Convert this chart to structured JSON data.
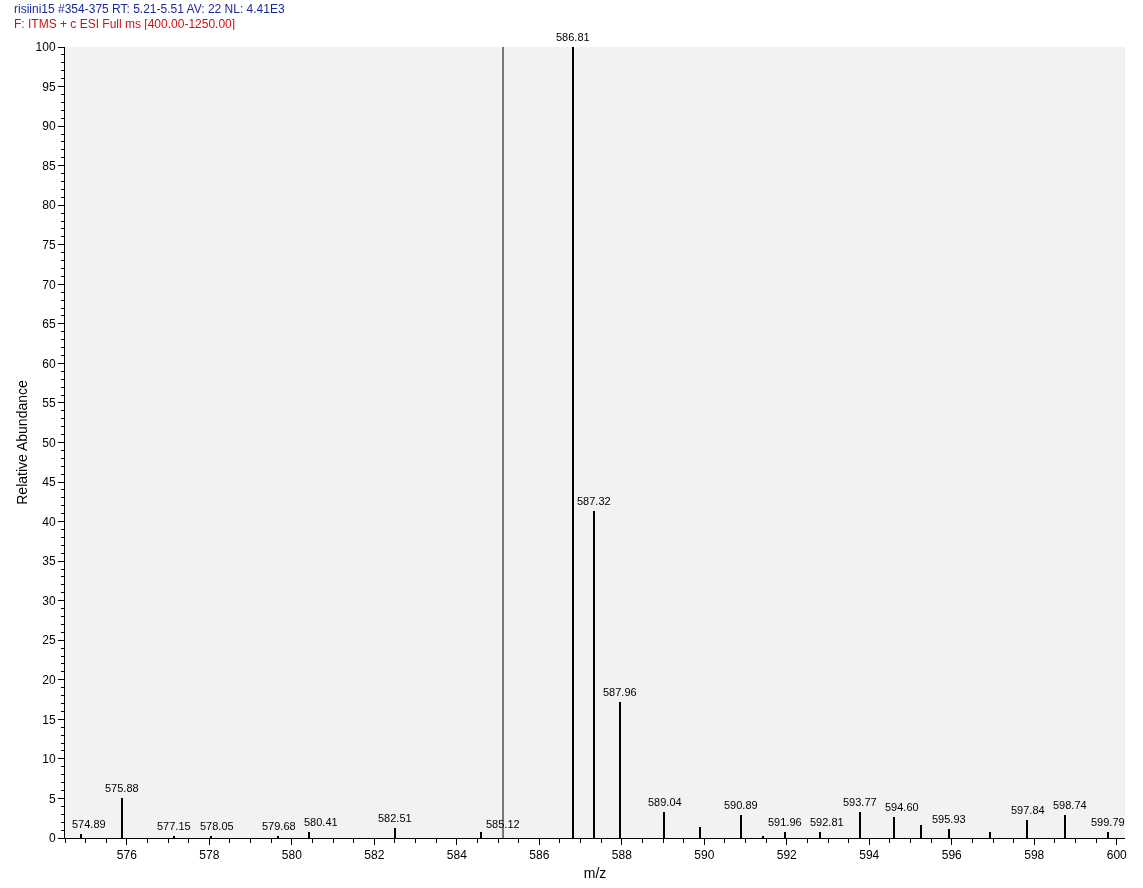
{
  "chart_data": {
    "type": "bar",
    "title": "risiini15 #354-375  RT: 5.21-5.51  AV: 22  NL: 4.41E3",
    "subtitle": "F: ITMS + c ESI Full ms [400.00-1250.00]",
    "xlabel": "m/z",
    "ylabel": "Relative Abundance",
    "x": [
      574.89,
      575.88,
      577.15,
      578.05,
      579.68,
      580.41,
      582.51,
      584.58,
      585.12,
      586.81,
      587.32,
      587.96,
      589.04,
      589.9,
      590.89,
      591.43,
      591.96,
      592.81,
      593.77,
      594.6,
      595.26,
      595.93,
      596.94,
      597.84,
      598.74,
      599.79
    ],
    "values": [
      0.5,
      5.1,
      0.3,
      0.3,
      0.3,
      0.8,
      1.3,
      0.7,
      null,
      100,
      41.3,
      17.2,
      3.3,
      1.4,
      2.9,
      0.2,
      0.8,
      0.8,
      3.3,
      2.6,
      1.7,
      1.2,
      0.8,
      2.3,
      2.9,
      0.7
    ],
    "annotations": [
      {
        "text": "574.89",
        "x": 574.89,
        "y": 0.5
      },
      {
        "text": "575.88",
        "x": 575.88,
        "y": 5.1
      },
      {
        "text": "577.15",
        "x": 577.15,
        "y": 0.3
      },
      {
        "text": "578.05",
        "x": 578.05,
        "y": 0.3
      },
      {
        "text": "579.68",
        "x": 579.68,
        "y": 0.3
      },
      {
        "text": "580.41",
        "x": 580.41,
        "y": 0.8
      },
      {
        "text": "582.51",
        "x": 582.51,
        "y": 1.3
      },
      {
        "text": "585.12",
        "x": 585.12,
        "y": 0.5
      },
      {
        "text": "586.81",
        "x": 586.81,
        "y": 100
      },
      {
        "text": "587.32",
        "x": 587.32,
        "y": 41.3
      },
      {
        "text": "587.96",
        "x": 587.96,
        "y": 17.2
      },
      {
        "text": "589.04",
        "x": 589.04,
        "y": 3.3
      },
      {
        "text": "590.89",
        "x": 590.89,
        "y": 2.9
      },
      {
        "text": "591.96",
        "x": 591.96,
        "y": 0.8
      },
      {
        "text": "592.81",
        "x": 592.81,
        "y": 0.8
      },
      {
        "text": "593.77",
        "x": 593.77,
        "y": 3.3
      },
      {
        "text": "594.60",
        "x": 594.6,
        "y": 2.6
      },
      {
        "text": "595.93",
        "x": 595.93,
        "y": 1.2
      },
      {
        "text": "597.84",
        "x": 597.84,
        "y": 2.3
      },
      {
        "text": "598.74",
        "x": 598.74,
        "y": 2.9
      },
      {
        "text": "599.79",
        "x": 599.79,
        "y": 0.7
      }
    ],
    "color": "#000000",
    "xlim": [
      574.5,
      600.2
    ],
    "xticks": [
      576,
      578,
      580,
      582,
      584,
      586,
      588,
      590,
      592,
      594,
      596,
      598,
      600
    ],
    "ylim": [
      0,
      100
    ],
    "yticks": [
      0,
      5,
      10,
      15,
      20,
      25,
      30,
      35,
      40,
      45,
      50,
      55,
      60,
      65,
      70,
      75,
      80,
      85,
      90,
      95,
      100
    ],
    "ref_lines": [
      {
        "axis": "x",
        "value": 585.12,
        "color": "#000000"
      }
    ],
    "grid": false
  }
}
